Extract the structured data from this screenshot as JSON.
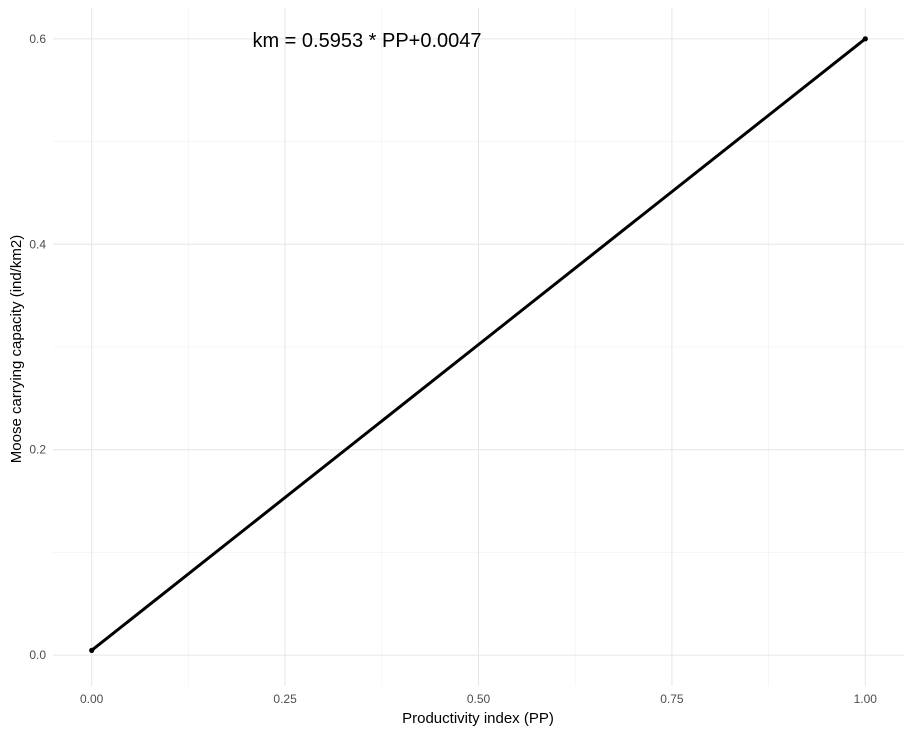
{
  "chart_data": {
    "type": "line",
    "title": "",
    "xlabel": "Productivity index (PP)",
    "ylabel": "Moose carrying capacity (ind/km2)",
    "xlim": [
      -0.05,
      1.05
    ],
    "ylim": [
      -0.03,
      0.63
    ],
    "x_ticks": [
      0.0,
      0.25,
      0.5,
      0.75,
      1.0
    ],
    "x_tick_labels": [
      "0.00",
      "0.25",
      "0.50",
      "0.75",
      "1.00"
    ],
    "x_minor_ticks": [
      0.125,
      0.375,
      0.625,
      0.875
    ],
    "y_ticks": [
      0.0,
      0.2,
      0.4,
      0.6
    ],
    "y_tick_labels": [
      "0.0",
      "0.2",
      "0.4",
      "0.6"
    ],
    "y_minor_ticks": [
      0.1,
      0.3,
      0.5
    ],
    "grid": true,
    "annotation": {
      "text": "km = 0.5953 * PP+0.0047",
      "x": 0.45,
      "y": 0.6
    },
    "series": [
      {
        "x": [
          0.0,
          1.0
        ],
        "y": [
          0.0047,
          0.6
        ],
        "color": "#000000",
        "end_points": true
      }
    ]
  }
}
